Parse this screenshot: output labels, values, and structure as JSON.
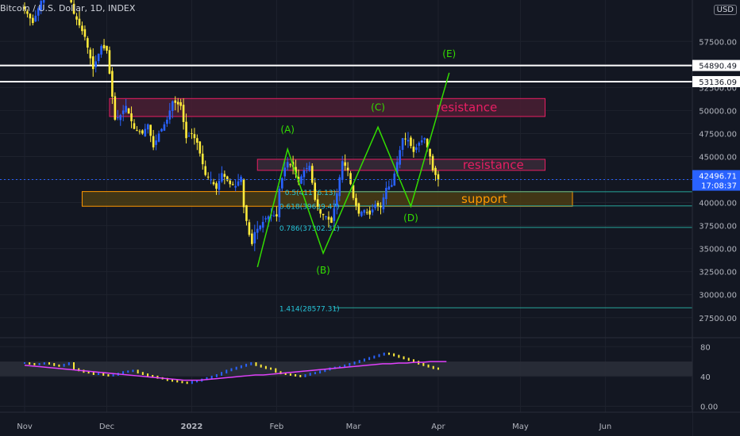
{
  "header": {
    "title": "Bitcoin / U.S. Dollar, 1D, INDEX",
    "currency": "USD"
  },
  "chart_data": {
    "type": "candlestick",
    "ylim": [
      25500,
      62000
    ],
    "y_ticks": [
      {
        "v": 57500,
        "t": "57500.00"
      },
      {
        "v": 55000,
        "t": "55000.00"
      },
      {
        "v": 52500,
        "t": "52500.00"
      },
      {
        "v": 50000,
        "t": "50000.00"
      },
      {
        "v": 47500,
        "t": "47500.00"
      },
      {
        "v": 45000,
        "t": "45000.00"
      },
      {
        "v": 42500,
        "t": "42500.00"
      },
      {
        "v": 40000,
        "t": "40000.00"
      },
      {
        "v": 37500,
        "t": "37500.00"
      },
      {
        "v": 35000,
        "t": "35000.00"
      },
      {
        "v": 32500,
        "t": "32500.00"
      },
      {
        "v": 30000,
        "t": "30000.00"
      },
      {
        "v": 27500,
        "t": "27500.00"
      }
    ],
    "x_labels": [
      {
        "label": "Nov",
        "day": 0
      },
      {
        "label": "Dec",
        "day": 30
      },
      {
        "label": "2022",
        "day": 61
      },
      {
        "label": "Feb",
        "day": 92
      },
      {
        "label": "Mar",
        "day": 120
      },
      {
        "label": "Apr",
        "day": 151
      },
      {
        "label": "May",
        "day": 181
      },
      {
        "label": "Jun",
        "day": 212
      }
    ],
    "price_path": [
      [
        0,
        61000
      ],
      [
        3,
        59500
      ],
      [
        8,
        63500
      ],
      [
        12,
        64500
      ],
      [
        16,
        63000
      ],
      [
        18,
        60500
      ],
      [
        22,
        58000
      ],
      [
        25,
        54500
      ],
      [
        28,
        57000
      ],
      [
        30,
        56500
      ],
      [
        33,
        49000
      ],
      [
        35,
        49500
      ],
      [
        37,
        50500
      ],
      [
        40,
        48000
      ],
      [
        43,
        47500
      ],
      [
        45,
        48500
      ],
      [
        47,
        46000
      ],
      [
        49,
        47500
      ],
      [
        52,
        49000
      ],
      [
        54,
        51000
      ],
      [
        57,
        50500
      ],
      [
        59,
        47000
      ],
      [
        61,
        47500
      ],
      [
        63,
        46500
      ],
      [
        66,
        43000
      ],
      [
        68,
        42500
      ],
      [
        70,
        41500
      ],
      [
        72,
        43200
      ],
      [
        75,
        42000
      ],
      [
        77,
        41800
      ],
      [
        79,
        42800
      ],
      [
        80,
        39500
      ],
      [
        81,
        38000
      ],
      [
        82,
        36500
      ],
      [
        83,
        35500
      ],
      [
        84,
        36800
      ],
      [
        86,
        37500
      ],
      [
        88,
        38300
      ],
      [
        90,
        38700
      ],
      [
        92,
        38500
      ],
      [
        93,
        41500
      ],
      [
        95,
        43800
      ],
      [
        96,
        44400
      ],
      [
        98,
        43900
      ],
      [
        100,
        42200
      ],
      [
        102,
        43500
      ],
      [
        104,
        44000
      ],
      [
        106,
        40300
      ],
      [
        108,
        38800
      ],
      [
        110,
        38500
      ],
      [
        112,
        37800
      ],
      [
        114,
        41000
      ],
      [
        116,
        44500
      ],
      [
        118,
        43500
      ],
      [
        120,
        40500
      ],
      [
        122,
        38800
      ],
      [
        124,
        39200
      ],
      [
        126,
        38700
      ],
      [
        128,
        39800
      ],
      [
        130,
        39500
      ],
      [
        132,
        41600
      ],
      [
        134,
        41900
      ],
      [
        136,
        44400
      ],
      [
        138,
        47000
      ],
      [
        140,
        46800
      ],
      [
        142,
        45500
      ],
      [
        144,
        46500
      ],
      [
        146,
        47000
      ],
      [
        148,
        45000
      ],
      [
        149,
        43500
      ],
      [
        150,
        43000
      ],
      [
        151,
        42500
      ]
    ],
    "series": [
      {
        "name": "Elliott projection",
        "color": "#33dd00",
        "points": [
          [
            85,
            33000
          ],
          [
            96,
            45800
          ],
          [
            109,
            34500
          ],
          [
            129,
            48200
          ],
          [
            141,
            39600
          ],
          [
            155,
            54100
          ]
        ]
      }
    ],
    "wave_labels": [
      {
        "label": "(A)",
        "day": 96,
        "price": 47600
      },
      {
        "label": "(B)",
        "day": 109,
        "price": 32300
      },
      {
        "label": "(C)",
        "day": 129,
        "price": 50000
      },
      {
        "label": "(D)",
        "day": 141,
        "price": 38000
      },
      {
        "label": "(E)",
        "day": 155,
        "price": 55800
      }
    ],
    "zones": [
      {
        "label": "resistance",
        "from": 49350,
        "to": 51300,
        "start_day": 31,
        "end_day": 190,
        "fill": "#4a1f33",
        "stroke": "#e91e63",
        "text_color": "#e91e63"
      },
      {
        "label": "resistance",
        "from": 43500,
        "to": 44700,
        "start_day": 85,
        "end_day": 190,
        "fill": "#3a2a38",
        "stroke": "#e91e63",
        "text_color": "#e91e63"
      },
      {
        "label": "support",
        "from": 39600,
        "to": 41200,
        "start_day": 21,
        "end_day": 200,
        "fill": "#4a3c14",
        "stroke": "#ff9800",
        "text_color": "#ff9800"
      }
    ],
    "levels": [
      {
        "label": "54890.49",
        "price": 54890.49
      },
      {
        "label": "53136.09",
        "price": 53136.09
      }
    ],
    "current_price": {
      "label": "42496.71",
      "time": "17:08:37",
      "price": 42496.71
    },
    "fib_labels": [
      {
        "label": "0.5(41176.13)",
        "price": 41176.13,
        "day": 95
      },
      {
        "label": "0.618(39639.47)",
        "price": 39639.47,
        "day": 93
      },
      {
        "label": "0.786(37302.31)",
        "price": 37302.31,
        "day": 93
      },
      {
        "label": "1.414(28577.31)",
        "price": 28577.31,
        "day": 93
      }
    ],
    "oscillator": {
      "ylim": [
        -8,
        92
      ],
      "ticks": [
        {
          "v": 80,
          "t": "80"
        },
        {
          "v": 40,
          "t": "40"
        },
        {
          "v": 0,
          "t": "0.00"
        }
      ],
      "band": [
        40,
        60
      ],
      "values": [
        58,
        57,
        56,
        57,
        58,
        57,
        55,
        54,
        56,
        58,
        50,
        48,
        46,
        45,
        43,
        44,
        42,
        41,
        42,
        44,
        46,
        47,
        48,
        45,
        43,
        41,
        40,
        38,
        37,
        35,
        34,
        33,
        32,
        31,
        33,
        34,
        36,
        38,
        40,
        42,
        45,
        48,
        50,
        52,
        54,
        56,
        58,
        55,
        53,
        51,
        50,
        46,
        44,
        43,
        42,
        41,
        40,
        42,
        44,
        45,
        47,
        49,
        51,
        52,
        53,
        55,
        57,
        59,
        61,
        63,
        65,
        67,
        69,
        71,
        70,
        68,
        66,
        64,
        62,
        60,
        57,
        55,
        53,
        51,
        50
      ],
      "ma": [
        55,
        54,
        53,
        52,
        51,
        50,
        49,
        48,
        47,
        46,
        45,
        44,
        43,
        42,
        41,
        40,
        39,
        38,
        37,
        36,
        35,
        35,
        35,
        36,
        37,
        38,
        39,
        40,
        41,
        42,
        42,
        43,
        44,
        45,
        46,
        47,
        48,
        49,
        50,
        51,
        52,
        53,
        54,
        55,
        56,
        57,
        57,
        58,
        58,
        59,
        59,
        60,
        60,
        60
      ]
    }
  }
}
